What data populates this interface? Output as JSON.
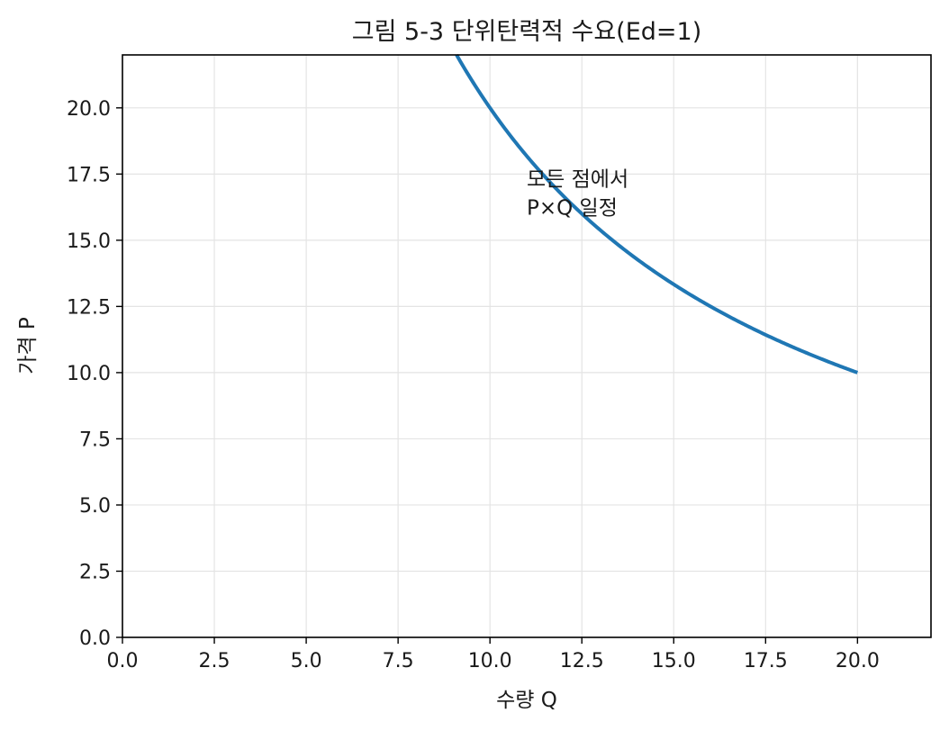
{
  "chart_data": {
    "type": "line",
    "title": "그림 5-3  단위탄력적 수요(Ed=1)",
    "xlabel": "수량 Q",
    "ylabel": "가격 P",
    "xlim": [
      0,
      22
    ],
    "ylim": [
      0,
      22
    ],
    "xticks": [
      0,
      2.5,
      5,
      7.5,
      10,
      12.5,
      15,
      17.5,
      20
    ],
    "yticks": [
      0,
      2.5,
      5,
      7.5,
      10,
      12.5,
      15,
      17.5,
      20
    ],
    "grid": true,
    "series": [
      {
        "color": "#1f77b4",
        "function": "P = 200 / Q",
        "x_range": [
          9.09,
          20
        ],
        "x": [
          9.09,
          10,
          11,
          12,
          13,
          14,
          15,
          16,
          17,
          18,
          19,
          20
        ],
        "y": [
          22.0,
          20.0,
          18.18,
          16.67,
          15.38,
          14.29,
          13.33,
          12.5,
          11.76,
          11.11,
          10.53,
          10.0
        ]
      }
    ],
    "annotations": [
      {
        "lines": [
          "모든 점에서",
          "P×Q 일정"
        ],
        "x": 11,
        "y": 16
      }
    ]
  }
}
